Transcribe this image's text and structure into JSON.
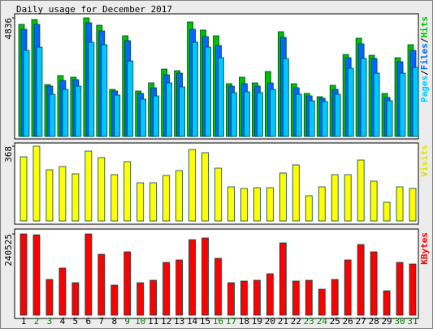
{
  "chart_data": [
    {
      "type": "bar",
      "title": "Daily usage for December 2017",
      "ylim": [
        0,
        4836
      ],
      "yticks": [
        4836
      ],
      "legend_separator": "/",
      "series": [
        {
          "name": "Hits",
          "color": "#00c000",
          "values": [
            4571,
            4770,
            2120,
            2484,
            2418,
            4836,
            4537,
            1921,
            4107,
            1855,
            2186,
            2749,
            2683,
            4670,
            4339,
            4107,
            2153,
            2418,
            2186,
            2650,
            4273,
            2153,
            1755,
            1623,
            2087,
            3345,
            4008,
            3312,
            1755,
            3213,
            3743
          ]
        },
        {
          "name": "Files",
          "color": "#0068ff",
          "values": [
            4372,
            4571,
            2053,
            2285,
            2318,
            4637,
            4306,
            1855,
            3908,
            1755,
            1987,
            2517,
            2583,
            4372,
            4074,
            3709,
            2053,
            2153,
            2053,
            2186,
            4041,
            1987,
            1656,
            1557,
            1921,
            3213,
            3776,
            3180,
            1590,
            3047,
            3511
          ]
        },
        {
          "name": "Pages",
          "color": "#00c8ff",
          "values": [
            3511,
            3643,
            1722,
            1921,
            2053,
            3842,
            3743,
            1689,
            3080,
            1524,
            1656,
            2186,
            2020,
            3842,
            3643,
            3213,
            1788,
            1822,
            1788,
            1921,
            3180,
            1722,
            1457,
            1424,
            1722,
            2782,
            3180,
            2583,
            1457,
            2583,
            2815
          ]
        }
      ]
    },
    {
      "type": "bar",
      "ylim": [
        0,
        368
      ],
      "yticks": [
        368
      ],
      "series": [
        {
          "name": "Visits",
          "color": "#ffff00",
          "values": [
            316,
            368,
            252,
            268,
            232,
            344,
            312,
            228,
            292,
            188,
            188,
            224,
            248,
            352,
            336,
            260,
            168,
            160,
            164,
            164,
            236,
            276,
            124,
            168,
            228,
            228,
            300,
            196,
            92,
            168,
            160
          ]
        }
      ]
    },
    {
      "type": "bar",
      "ylim": [
        0,
        240525
      ],
      "yticks": [
        240525
      ],
      "categories": [
        "1",
        "2",
        "3",
        "4",
        "5",
        "6",
        "7",
        "8",
        "9",
        "10",
        "11",
        "12",
        "13",
        "14",
        "15",
        "16",
        "17",
        "18",
        "19",
        "20",
        "21",
        "22",
        "23",
        "24",
        "25",
        "26",
        "27",
        "28",
        "29",
        "30",
        "31"
      ],
      "category_colors": [
        "#000000",
        "#008000",
        "#008000",
        "#000000",
        "#000000",
        "#000000",
        "#000000",
        "#000000",
        "#008000",
        "#008000",
        "#000000",
        "#000000",
        "#000000",
        "#000000",
        "#000000",
        "#008000",
        "#008000",
        "#000000",
        "#000000",
        "#000000",
        "#000000",
        "#000000",
        "#008000",
        "#008000",
        "#000000",
        "#000000",
        "#000000",
        "#000000",
        "#000000",
        "#008000",
        "#008000"
      ],
      "series": [
        {
          "name": "KBytes",
          "color": "#ff0000",
          "values": [
            240525,
            238000,
            105831,
            139505,
            96210,
            240525,
            180394,
            88994,
            187610,
            96210,
            103426,
            156341,
            163557,
            223688,
            228499,
            168368,
            96210,
            101020,
            103426,
            122668,
            214067,
            101020,
            103426,
            76968,
            105831,
            163557,
            209257,
            187610,
            72158,
            156341,
            151530
          ]
        }
      ]
    }
  ]
}
